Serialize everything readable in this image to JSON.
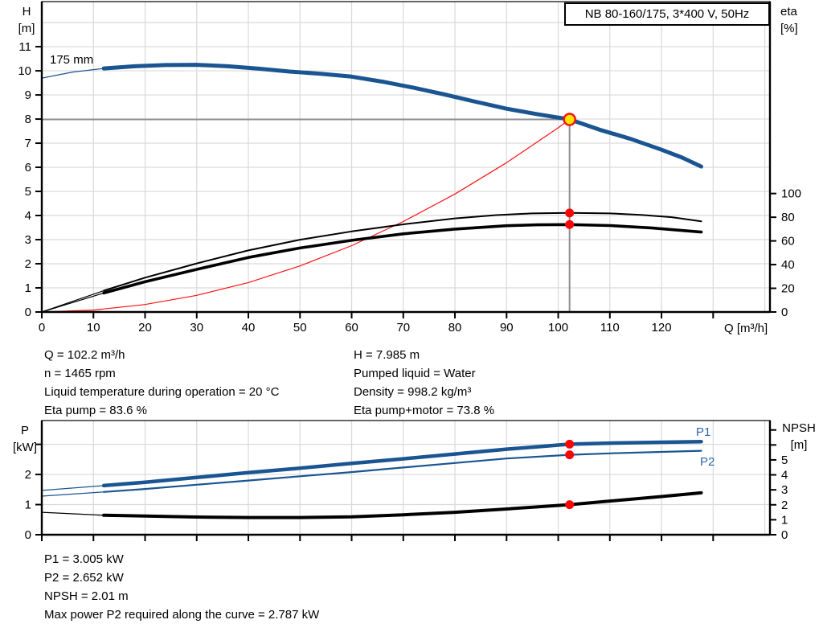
{
  "panel_title": "NB 80-160/175, 3*400 V, 50Hz",
  "colors": {
    "curve_blue": "#1a5592",
    "label_blue": "#2b66ac",
    "curve_black": "#000000",
    "system_red": "#fa1414",
    "marker_red": "#fa0505",
    "marker_yellow": "#ffe600",
    "grid": "#d9d9d9",
    "crosshair": "#8e8e8e",
    "axis": "#000000"
  },
  "chart_data": [
    {
      "type": "line",
      "id": "qh-chart",
      "title": "NB 80-160/175, 3*400 V, 50Hz",
      "x_axis": {
        "label": "Q [m³/h]",
        "min": 0,
        "max": 141,
        "tick_values": [
          0,
          10,
          20,
          30,
          40,
          50,
          60,
          70,
          80,
          90,
          100,
          110,
          120,
          130
        ],
        "label_max": 120,
        "grid_values": [
          10,
          20,
          30,
          40,
          50,
          60,
          70,
          80,
          90,
          100,
          110,
          120,
          130,
          140
        ]
      },
      "y_left": {
        "name": "H",
        "unit": "[m]",
        "min": 0,
        "max": 12.87,
        "tick_values": [
          0,
          1,
          2,
          3,
          4,
          5,
          6,
          7,
          8,
          9,
          10,
          11
        ],
        "label_max": 11,
        "grid_values": [
          1,
          2,
          3,
          4,
          5,
          6,
          7,
          8,
          9,
          10,
          11,
          12
        ]
      },
      "y_right": {
        "name": "eta",
        "unit": "[%]",
        "min": 0,
        "max": 262,
        "tick_values": [
          0,
          20,
          40,
          60,
          80,
          100
        ],
        "label_max": 100
      },
      "crosshair": {
        "q": 102.2,
        "v": 7.985
      },
      "series": [
        {
          "name": "system-curve",
          "axis": "left",
          "color": "#fa1414",
          "width": 1.2,
          "points": [
            [
              0,
              0
            ],
            [
              10,
              0.08
            ],
            [
              20,
              0.31
            ],
            [
              30,
              0.69
            ],
            [
              40,
              1.22
            ],
            [
              50,
              1.91
            ],
            [
              60,
              2.75
            ],
            [
              70,
              3.75
            ],
            [
              80,
              4.89
            ],
            [
              90,
              6.19
            ],
            [
              100,
              7.64
            ],
            [
              102.2,
              7.985
            ]
          ]
        },
        {
          "name": "eta-pump-curve",
          "axis": "right",
          "color": "#000000",
          "width": 2,
          "thin_until": 12,
          "points": [
            [
              0,
              0
            ],
            [
              6,
              9
            ],
            [
              12,
              18
            ],
            [
              20,
              29
            ],
            [
              30,
              41
            ],
            [
              40,
              52
            ],
            [
              50,
              61
            ],
            [
              60,
              68
            ],
            [
              70,
              74
            ],
            [
              80,
              79
            ],
            [
              88,
              81.8
            ],
            [
              95,
              83.2
            ],
            [
              102.2,
              83.6
            ],
            [
              110,
              83.2
            ],
            [
              116,
              82
            ],
            [
              122,
              80
            ],
            [
              127.7,
              76.5
            ]
          ]
        },
        {
          "name": "eta-pump-motor-curve",
          "axis": "right",
          "color": "#000000",
          "width": 3.6,
          "thin_until": 12,
          "points": [
            [
              0,
              0
            ],
            [
              6,
              8
            ],
            [
              12,
              16
            ],
            [
              20,
              25.5
            ],
            [
              30,
              36
            ],
            [
              40,
              46
            ],
            [
              50,
              54
            ],
            [
              60,
              60.5
            ],
            [
              70,
              66
            ],
            [
              80,
              70
            ],
            [
              90,
              72.8
            ],
            [
              96,
              73.6
            ],
            [
              102.2,
              73.8
            ],
            [
              110,
              73
            ],
            [
              118,
              71
            ],
            [
              127.7,
              67.5
            ]
          ]
        },
        {
          "name": "head-curve-175mm",
          "label": "175 mm",
          "axis": "left",
          "color": "#1a5592",
          "width": 5,
          "thin_until": 12,
          "points": [
            [
              0,
              9.7
            ],
            [
              6,
              9.95
            ],
            [
              12,
              10.1
            ],
            [
              18,
              10.19
            ],
            [
              24,
              10.24
            ],
            [
              30,
              10.25
            ],
            [
              36,
              10.19
            ],
            [
              42,
              10.09
            ],
            [
              48,
              9.97
            ],
            [
              54,
              9.88
            ],
            [
              60,
              9.76
            ],
            [
              66,
              9.55
            ],
            [
              72,
              9.3
            ],
            [
              78,
              9.02
            ],
            [
              84,
              8.72
            ],
            [
              90,
              8.43
            ],
            [
              96,
              8.2
            ],
            [
              102.2,
              7.985
            ],
            [
              108,
              7.56
            ],
            [
              114,
              7.18
            ],
            [
              120,
              6.73
            ],
            [
              124,
              6.4
            ],
            [
              127.7,
              6.03
            ]
          ]
        }
      ],
      "markers": [
        {
          "q": 102.2,
          "v": 7.985,
          "axis": "left",
          "type": "duty",
          "name": "duty-point"
        },
        {
          "q": 102.2,
          "v": 83.6,
          "axis": "right",
          "type": "dot",
          "name": "eta-pump-point"
        },
        {
          "q": 102.2,
          "v": 73.8,
          "axis": "right",
          "type": "dot",
          "name": "eta-pump-motor-point"
        }
      ]
    },
    {
      "type": "line",
      "id": "power-npsh-chart",
      "x_axis": {
        "label": "",
        "min": 0,
        "max": 141,
        "tick_values": [
          0,
          10,
          20,
          30,
          40,
          50,
          60,
          70,
          80,
          90,
          100,
          110,
          120,
          130
        ],
        "label_max": -1,
        "grid_values": [
          10,
          20,
          30,
          40,
          50,
          60,
          70,
          80,
          90,
          100,
          110,
          120,
          130,
          140
        ]
      },
      "y_left": {
        "name": "P",
        "unit": "[kW]",
        "min": 0,
        "max": 3.79,
        "tick_values": [
          0,
          1,
          2,
          3
        ],
        "label_max": 2,
        "grid_values": [
          1,
          2,
          3
        ]
      },
      "y_right": {
        "name": "NPSH",
        "unit": "[m]",
        "min": 0,
        "max": 7.63,
        "tick_values": [
          0,
          1,
          2,
          3,
          4,
          5,
          6,
          7
        ],
        "label_max": 5
      },
      "series": [
        {
          "name": "npsh-curve",
          "axis": "right",
          "color": "#000000",
          "width": 4,
          "thin_until": 12,
          "points": [
            [
              0,
              1.5
            ],
            [
              12,
              1.3
            ],
            [
              20,
              1.25
            ],
            [
              30,
              1.18
            ],
            [
              40,
              1.15
            ],
            [
              50,
              1.15
            ],
            [
              60,
              1.2
            ],
            [
              70,
              1.33
            ],
            [
              80,
              1.5
            ],
            [
              90,
              1.72
            ],
            [
              102.2,
              2.01
            ],
            [
              110,
              2.25
            ],
            [
              120,
              2.55
            ],
            [
              127.7,
              2.8
            ]
          ]
        },
        {
          "name": "p2-curve",
          "label": "P2",
          "axis": "left",
          "color": "#1a5592",
          "width": 2.2,
          "thin_until": 12,
          "points": [
            [
              0,
              1.28
            ],
            [
              12,
              1.42
            ],
            [
              20,
              1.52
            ],
            [
              30,
              1.66
            ],
            [
              40,
              1.8
            ],
            [
              50,
              1.94
            ],
            [
              60,
              2.08
            ],
            [
              70,
              2.23
            ],
            [
              80,
              2.38
            ],
            [
              90,
              2.53
            ],
            [
              102.2,
              2.652
            ],
            [
              110,
              2.7
            ],
            [
              120,
              2.75
            ],
            [
              127.7,
              2.787
            ]
          ]
        },
        {
          "name": "p1-curve",
          "label": "P1",
          "axis": "left",
          "color": "#1a5592",
          "width": 4.5,
          "thin_until": 12,
          "points": [
            [
              0,
              1.47
            ],
            [
              12,
              1.63
            ],
            [
              20,
              1.74
            ],
            [
              30,
              1.9
            ],
            [
              40,
              2.06
            ],
            [
              50,
              2.21
            ],
            [
              60,
              2.37
            ],
            [
              70,
              2.52
            ],
            [
              80,
              2.68
            ],
            [
              90,
              2.84
            ],
            [
              96,
              2.92
            ],
            [
              102.2,
              3.005
            ],
            [
              110,
              3.04
            ],
            [
              120,
              3.07
            ],
            [
              127.7,
              3.09
            ]
          ]
        }
      ],
      "markers": [
        {
          "q": 102.2,
          "v": 3.005,
          "axis": "left",
          "type": "dot",
          "name": "p1-point"
        },
        {
          "q": 102.2,
          "v": 2.652,
          "axis": "left",
          "type": "dot",
          "name": "p2-point"
        },
        {
          "q": 102.2,
          "v": 2.01,
          "axis": "right",
          "type": "dot",
          "name": "npsh-point"
        }
      ]
    }
  ],
  "info": {
    "left": [
      "Q = 102.2 m³/h",
      "n = 1465 rpm",
      "Liquid temperature during operation = 20 °C",
      "Eta pump = 83.6 %"
    ],
    "right": [
      "H = 7.985 m",
      "Pumped liquid = Water",
      "Density = 998.2 kg/m³",
      "Eta pump+motor = 73.8 %"
    ],
    "bottom": [
      "P1 = 3.005 kW",
      "P2 = 2.652 kW",
      "NPSH = 2.01 m",
      "Max power P2 required along the curve = 2.787 kW"
    ]
  }
}
